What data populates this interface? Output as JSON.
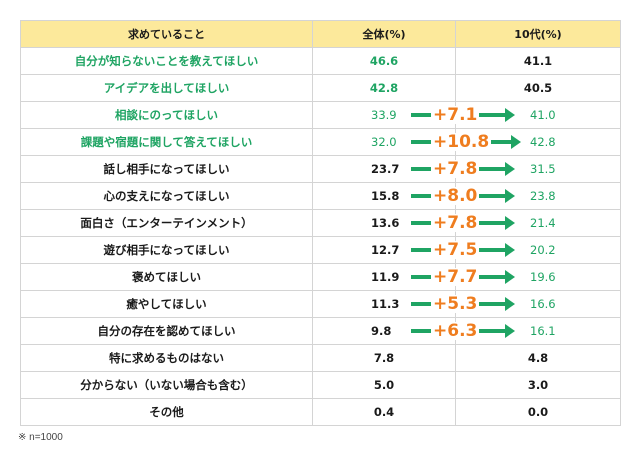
{
  "table": {
    "headers": [
      "求めていること",
      "全体(%)",
      "10代(%)"
    ],
    "rows": [
      {
        "label": "自分が知らないことを教えてほしい",
        "all": "46.6",
        "teens": "41.1",
        "diff": null,
        "label_green": true,
        "all_green": true,
        "teens_green": false
      },
      {
        "label": "アイデアを出してほしい",
        "all": "42.8",
        "teens": "40.5",
        "diff": null,
        "label_green": true,
        "all_green": true,
        "teens_green": false
      },
      {
        "label": "相談にのってほしい",
        "all": "33.9",
        "teens": "41.0",
        "diff": "+7.1",
        "label_green": true,
        "all_green": true,
        "teens_green": true
      },
      {
        "label": "課題や宿題に関して答えてほしい",
        "all": "32.0",
        "teens": "42.8",
        "diff": "+10.8",
        "label_green": true,
        "all_green": true,
        "teens_green": true
      },
      {
        "label": "話し相手になってほしい",
        "all": "23.7",
        "teens": "31.5",
        "diff": "+7.8",
        "label_green": false,
        "all_green": false,
        "teens_green": true
      },
      {
        "label": "心の支えになってほしい",
        "all": "15.8",
        "teens": "23.8",
        "diff": "+8.0",
        "label_green": false,
        "all_green": false,
        "teens_green": true
      },
      {
        "label": "面白さ（エンターテインメント）",
        "all": "13.6",
        "teens": "21.4",
        "diff": "+7.8",
        "label_green": false,
        "all_green": false,
        "teens_green": true
      },
      {
        "label": "遊び相手になってほしい",
        "all": "12.7",
        "teens": "20.2",
        "diff": "+7.5",
        "label_green": false,
        "all_green": false,
        "teens_green": true
      },
      {
        "label": "褒めてほしい",
        "all": "11.9",
        "teens": "19.6",
        "diff": "+7.7",
        "label_green": false,
        "all_green": false,
        "teens_green": true
      },
      {
        "label": "癒やしてほしい",
        "all": "11.3",
        "teens": "16.6",
        "diff": "+5.3",
        "label_green": false,
        "all_green": false,
        "teens_green": true
      },
      {
        "label": "自分の存在を認めてほしい",
        "all": "9.8",
        "teens": "16.1",
        "diff": "+6.3",
        "label_green": false,
        "all_green": false,
        "teens_green": true
      },
      {
        "label": "特に求めるものはない",
        "all": "7.8",
        "teens": "4.8",
        "diff": null,
        "label_green": false,
        "all_green": false,
        "teens_green": false
      },
      {
        "label": "分からない（いない場合も含む）",
        "all": "5.0",
        "teens": "3.0",
        "diff": null,
        "label_green": false,
        "all_green": false,
        "teens_green": false
      },
      {
        "label": "その他",
        "all": "0.4",
        "teens": "0.0",
        "diff": null,
        "label_green": false,
        "all_green": false,
        "teens_green": false
      }
    ]
  },
  "footnote": "※ n=1000",
  "colors": {
    "header_bg": "#fce99b",
    "highlight_green": "#1fa463",
    "diff_orange": "#ef7d1f",
    "border": "#d4d4d4"
  },
  "chart_data": {
    "type": "table",
    "title": "",
    "columns": [
      "求めていること",
      "全体(%)",
      "10代(%)"
    ],
    "categories": [
      "自分が知らないことを教えてほしい",
      "アイデアを出してほしい",
      "相談にのってほしい",
      "課題や宿題に関して答えてほしい",
      "話し相手になってほしい",
      "心の支えになってほしい",
      "面白さ（エンターテインメント）",
      "遊び相手になってほしい",
      "褒めてほしい",
      "癒やしてほしい",
      "自分の存在を認めてほしい",
      "特に求めるものはない",
      "分からない（いない場合も含む）",
      "その他"
    ],
    "series": [
      {
        "name": "全体(%)",
        "values": [
          46.6,
          42.8,
          33.9,
          32.0,
          23.7,
          15.8,
          13.6,
          12.7,
          11.9,
          11.3,
          9.8,
          7.8,
          5.0,
          0.4
        ]
      },
      {
        "name": "10代(%)",
        "values": [
          41.1,
          40.5,
          41.0,
          42.8,
          31.5,
          23.8,
          21.4,
          20.2,
          19.6,
          16.6,
          16.1,
          4.8,
          3.0,
          0.0
        ]
      }
    ],
    "annotations": [
      "+7.1",
      "+10.8",
      "+7.8",
      "+8.0",
      "+7.8",
      "+7.5",
      "+7.7",
      "+5.3",
      "+6.3"
    ],
    "note": "※ n=1000"
  }
}
